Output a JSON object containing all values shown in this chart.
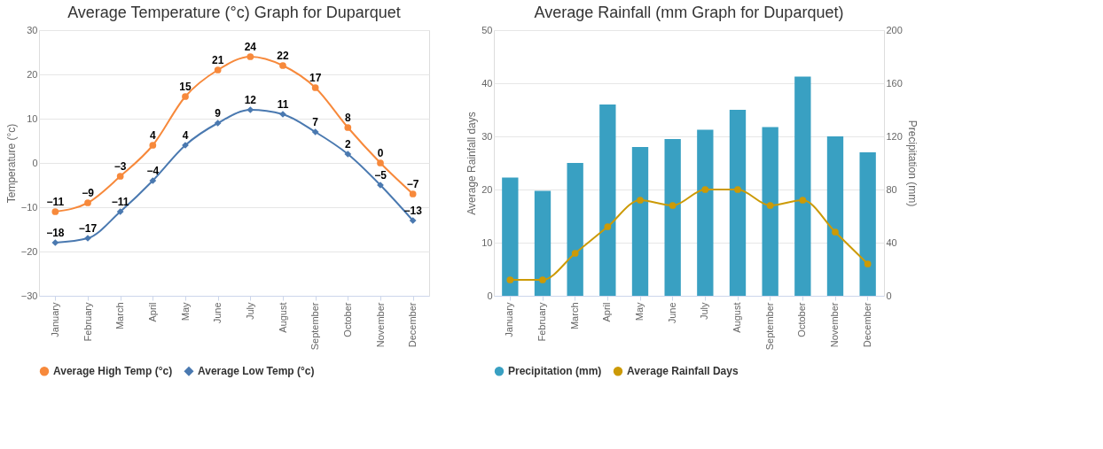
{
  "chart_data": [
    {
      "type": "line",
      "title": "Average Temperature (°c) Graph for Duparquet",
      "ylabel": "Temperature (°c)",
      "categories": [
        "January",
        "February",
        "March",
        "April",
        "May",
        "June",
        "July",
        "August",
        "September",
        "October",
        "November",
        "December"
      ],
      "series": [
        {
          "name": "Average High Temp (°c)",
          "color": "#f7893b",
          "marker": "circle",
          "values": [
            -11,
            -9,
            -3,
            4,
            15,
            21,
            24,
            22,
            17,
            8,
            0,
            -7
          ]
        },
        {
          "name": "Average Low Temp (°c)",
          "color": "#4a79b0",
          "marker": "diamond",
          "values": [
            -18,
            -17,
            -11,
            -4,
            4,
            9,
            12,
            11,
            7,
            2,
            -5,
            -13
          ]
        }
      ],
      "ylim": [
        -30,
        30
      ],
      "yticks": [
        -30,
        -20,
        -10,
        0,
        10,
        20,
        30
      ],
      "grid": "y",
      "legend": "bottom",
      "data_labels": true,
      "line_style": "solid"
    },
    {
      "type": "bar",
      "title": "Average Rainfall (mm Graph for Duparquet)",
      "ylabel": "Average Rainfall days",
      "y2label": "Precipitation (mm)",
      "categories": [
        "January",
        "February",
        "March",
        "April",
        "May",
        "June",
        "July",
        "August",
        "September",
        "October",
        "November",
        "December"
      ],
      "series": [
        {
          "name": "Precipitation (mm)",
          "color": "#39a0c2",
          "type": "bar",
          "axis": "y2",
          "marker": "circle",
          "values": [
            89,
            79,
            100,
            144,
            112,
            118,
            125,
            140,
            127,
            165,
            120,
            108
          ]
        },
        {
          "name": "Average Rainfall Days",
          "color": "#cc9a06",
          "type": "line",
          "axis": "y",
          "marker": "circle",
          "values": [
            3,
            3,
            8,
            13,
            18,
            17,
            20,
            20,
            17,
            18,
            12,
            6
          ]
        }
      ],
      "ylim": [
        0,
        50
      ],
      "yticks": [
        0,
        10,
        20,
        30,
        40,
        50
      ],
      "y2lim": [
        0,
        200
      ],
      "y2ticks": [
        0,
        40,
        80,
        120,
        160,
        200
      ],
      "grid": "y",
      "legend": "bottom"
    }
  ]
}
